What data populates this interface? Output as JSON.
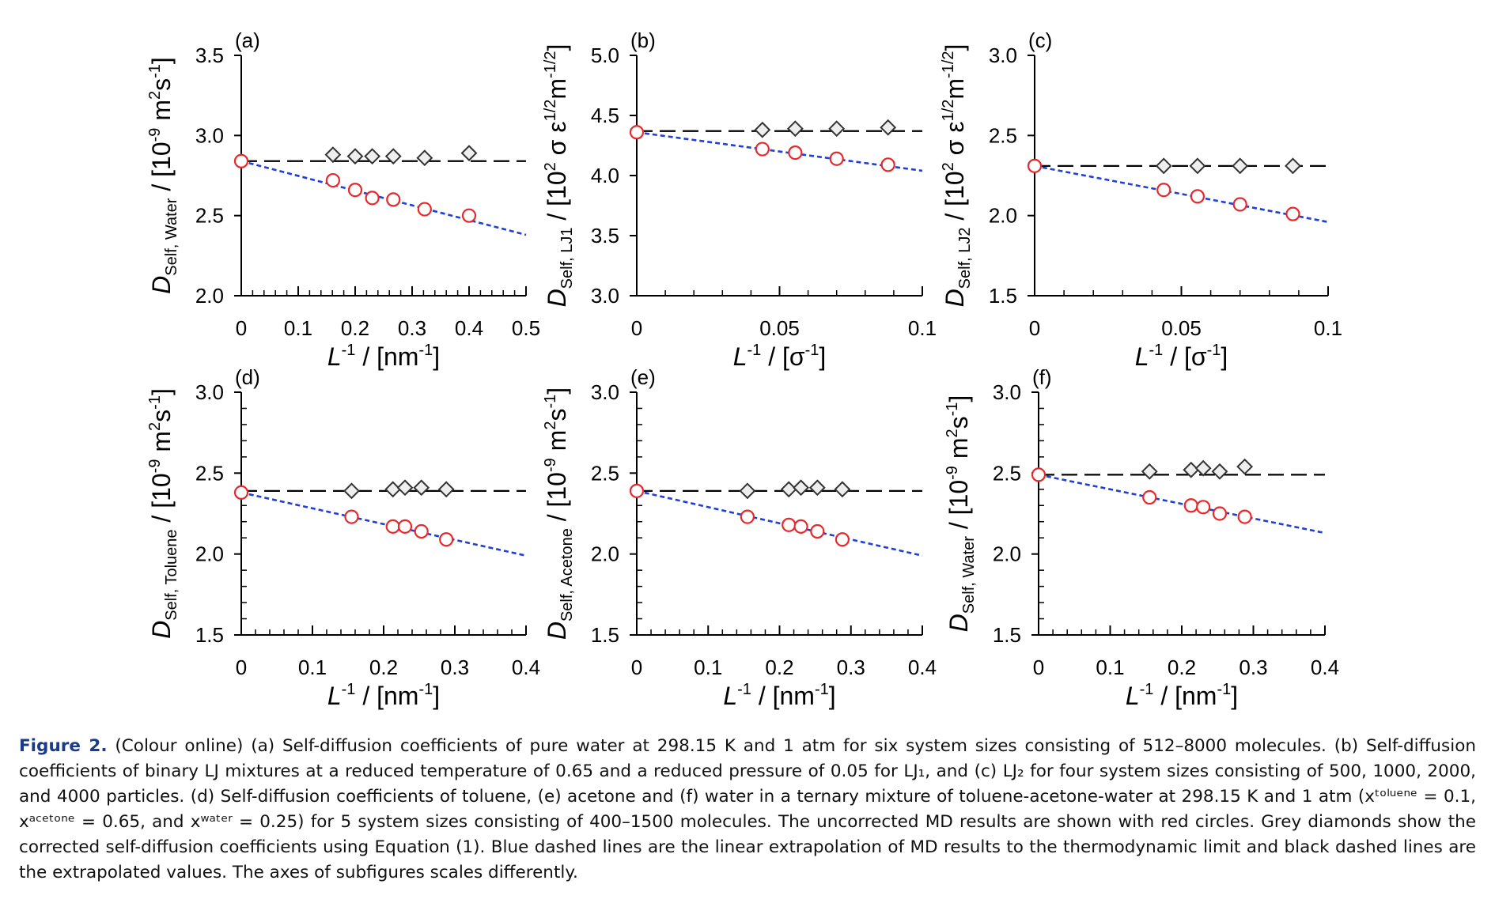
{
  "chart_data": [
    {
      "type": "scatter",
      "panel_label": "(a)",
      "xlabel_main": "L",
      "xlabel_sup": "-1",
      "xlabel_rest": " / [nm",
      "xlabel_sup2": "-1",
      "xlabel_end": "]",
      "ylabel_main": "D",
      "ylabel_sub": "Self, Water",
      "ylabel_rest": " / [10",
      "ylabel_sup": "-9",
      "ylabel_rest2": " m",
      "ylabel_sup2": "2",
      "ylabel_rest3": "s",
      "ylabel_sup3": "-1",
      "ylabel_end": "]",
      "xlim": [
        0,
        0.5
      ],
      "ylim": [
        2.0,
        3.5
      ],
      "xticks": [
        0,
        0.1,
        0.2,
        0.3,
        0.4,
        0.5
      ],
      "xtick_labels": [
        "0",
        "0.1",
        "0.2",
        "0.3",
        "0.4",
        "0.5"
      ],
      "yticks": [
        2.0,
        2.5,
        3.0,
        3.5
      ],
      "ytick_labels": [
        "2.0",
        "2.5",
        "3.0",
        "3.5"
      ],
      "x_minor": 0.02,
      "y_minor": null,
      "series": [
        {
          "marker": "circle",
          "color": "#e8282b",
          "x": [
            0,
            0.161,
            0.2,
            0.23,
            0.267,
            0.322,
            0.4
          ],
          "y": [
            2.84,
            2.72,
            2.66,
            2.61,
            2.6,
            2.54,
            2.5
          ]
        },
        {
          "marker": "diamond",
          "color": "#333333",
          "x": [
            0.161,
            0.2,
            0.23,
            0.267,
            0.322,
            0.4
          ],
          "y": [
            2.88,
            2.87,
            2.87,
            2.87,
            2.86,
            2.89
          ]
        }
      ],
      "fit_line": {
        "color": "#1f3fd6",
        "x": [
          0,
          0.5
        ],
        "y": [
          2.84,
          2.38
        ]
      },
      "extrapolated_line": {
        "color": "#000000",
        "y": 2.84
      }
    },
    {
      "type": "scatter",
      "panel_label": "(b)",
      "xlabel_main": "L",
      "xlabel_sup": "-1",
      "xlabel_rest": " / [σ",
      "xlabel_sup2": "-1",
      "xlabel_end": "]",
      "ylabel_main": "D",
      "ylabel_sub": "Self, LJ1",
      "ylabel_rest": " / [10",
      "ylabel_sup": "2",
      "ylabel_rest2": " σ ε",
      "ylabel_sup2": "1/2",
      "ylabel_rest3": "m",
      "ylabel_sup3": "-1/2",
      "ylabel_end": "]",
      "xlim": [
        0,
        0.1
      ],
      "ylim": [
        3.0,
        5.0
      ],
      "xticks": [
        0,
        0.05,
        0.1
      ],
      "xtick_labels": [
        "0",
        "0.05",
        "0.1"
      ],
      "yticks": [
        3.0,
        3.5,
        4.0,
        4.5,
        5.0
      ],
      "ytick_labels": [
        "3.0",
        "3.5",
        "4.0",
        "4.5",
        "5.0"
      ],
      "x_minor": 0.01,
      "y_minor": null,
      "series": [
        {
          "marker": "circle",
          "color": "#e8282b",
          "x": [
            0,
            0.044,
            0.0555,
            0.07,
            0.088
          ],
          "y": [
            4.36,
            4.22,
            4.19,
            4.14,
            4.09
          ]
        },
        {
          "marker": "diamond",
          "color": "#333333",
          "x": [
            0.044,
            0.0555,
            0.07,
            0.088
          ],
          "y": [
            4.38,
            4.39,
            4.39,
            4.4
          ]
        }
      ],
      "fit_line": {
        "color": "#1f3fd6",
        "x": [
          0,
          0.1
        ],
        "y": [
          4.36,
          4.04
        ]
      },
      "extrapolated_line": {
        "color": "#000000",
        "y": 4.37
      }
    },
    {
      "type": "scatter",
      "panel_label": "(c)",
      "xlabel_main": "L",
      "xlabel_sup": "-1",
      "xlabel_rest": " / [σ",
      "xlabel_sup2": "-1",
      "xlabel_end": "]",
      "ylabel_main": "D",
      "ylabel_sub": "Self, LJ2",
      "ylabel_rest": " / [10",
      "ylabel_sup": "2",
      "ylabel_rest2": " σ ε",
      "ylabel_sup2": "1/2",
      "ylabel_rest3": "m",
      "ylabel_sup3": "-1/2",
      "ylabel_end": "]",
      "xlim": [
        0,
        0.1
      ],
      "ylim": [
        1.5,
        3.0
      ],
      "xticks": [
        0,
        0.05,
        0.1
      ],
      "xtick_labels": [
        "0",
        "0.05",
        "0.1"
      ],
      "yticks": [
        1.5,
        2.0,
        2.5,
        3.0
      ],
      "ytick_labels": [
        "1.5",
        "2.0",
        "2.5",
        "3.0"
      ],
      "x_minor": 0.01,
      "y_minor": null,
      "series": [
        {
          "marker": "circle",
          "color": "#e8282b",
          "x": [
            0,
            0.044,
            0.0555,
            0.07,
            0.088
          ],
          "y": [
            2.31,
            2.16,
            2.12,
            2.07,
            2.01
          ]
        },
        {
          "marker": "diamond",
          "color": "#333333",
          "x": [
            0.044,
            0.0555,
            0.07,
            0.088
          ],
          "y": [
            2.31,
            2.31,
            2.31,
            2.31
          ]
        }
      ],
      "fit_line": {
        "color": "#1f3fd6",
        "x": [
          0,
          0.1
        ],
        "y": [
          2.31,
          1.96
        ]
      },
      "extrapolated_line": {
        "color": "#000000",
        "y": 2.31
      }
    },
    {
      "type": "scatter",
      "panel_label": "(d)",
      "xlabel_main": "L",
      "xlabel_sup": "-1",
      "xlabel_rest": " / [nm",
      "xlabel_sup2": "-1",
      "xlabel_end": "]",
      "ylabel_main": "D",
      "ylabel_sub": "Self, Toluene",
      "ylabel_rest": " / [10",
      "ylabel_sup": "-9",
      "ylabel_rest2": " m",
      "ylabel_sup2": "2",
      "ylabel_rest3": "s",
      "ylabel_sup3": "-1",
      "ylabel_end": "]",
      "xlim": [
        0,
        0.4
      ],
      "ylim": [
        1.5,
        3.0
      ],
      "xticks": [
        0,
        0.1,
        0.2,
        0.3,
        0.4
      ],
      "xtick_labels": [
        "0",
        "0.1",
        "0.2",
        "0.3",
        "0.4"
      ],
      "yticks": [
        1.5,
        2.0,
        2.5,
        3.0
      ],
      "ytick_labels": [
        "1.5",
        "2.0",
        "2.5",
        "3.0"
      ],
      "x_minor": 0.02,
      "y_minor": 0.1,
      "series": [
        {
          "marker": "circle",
          "color": "#e8282b",
          "x": [
            0,
            0.155,
            0.213,
            0.23,
            0.253,
            0.288
          ],
          "y": [
            2.38,
            2.23,
            2.17,
            2.17,
            2.14,
            2.09
          ]
        },
        {
          "marker": "diamond",
          "color": "#333333",
          "x": [
            0.155,
            0.213,
            0.23,
            0.253,
            0.288
          ],
          "y": [
            2.39,
            2.4,
            2.41,
            2.41,
            2.4
          ]
        }
      ],
      "fit_line": {
        "color": "#1f3fd6",
        "x": [
          0,
          0.4
        ],
        "y": [
          2.38,
          1.99
        ]
      },
      "extrapolated_line": {
        "color": "#000000",
        "y": 2.39
      }
    },
    {
      "type": "scatter",
      "panel_label": "(e)",
      "xlabel_main": "L",
      "xlabel_sup": "-1",
      "xlabel_rest": " / [nm",
      "xlabel_sup2": "-1",
      "xlabel_end": "]",
      "ylabel_main": "D",
      "ylabel_sub": "Self, Acetone",
      "ylabel_rest": " / [10",
      "ylabel_sup": "-9",
      "ylabel_rest2": " m",
      "ylabel_sup2": "2",
      "ylabel_rest3": "s",
      "ylabel_sup3": "-1",
      "ylabel_end": "]",
      "xlim": [
        0,
        0.4
      ],
      "ylim": [
        1.5,
        3.0
      ],
      "xticks": [
        0,
        0.1,
        0.2,
        0.3,
        0.4
      ],
      "xtick_labels": [
        "0",
        "0.1",
        "0.2",
        "0.3",
        "0.4"
      ],
      "yticks": [
        1.5,
        2.0,
        2.5,
        3.0
      ],
      "ytick_labels": [
        "1.5",
        "2.0",
        "2.5",
        "3.0"
      ],
      "x_minor": 0.02,
      "y_minor": 0.1,
      "series": [
        {
          "marker": "circle",
          "color": "#e8282b",
          "x": [
            0,
            0.155,
            0.213,
            0.23,
            0.253,
            0.288
          ],
          "y": [
            2.39,
            2.23,
            2.18,
            2.17,
            2.14,
            2.09
          ]
        },
        {
          "marker": "diamond",
          "color": "#333333",
          "x": [
            0.155,
            0.213,
            0.23,
            0.253,
            0.288
          ],
          "y": [
            2.39,
            2.4,
            2.41,
            2.41,
            2.4
          ]
        }
      ],
      "fit_line": {
        "color": "#1f3fd6",
        "x": [
          0,
          0.4
        ],
        "y": [
          2.39,
          1.99
        ]
      },
      "extrapolated_line": {
        "color": "#000000",
        "y": 2.39
      }
    },
    {
      "type": "scatter",
      "panel_label": "(f)",
      "xlabel_main": "L",
      "xlabel_sup": "-1",
      "xlabel_rest": " / [nm",
      "xlabel_sup2": "-1",
      "xlabel_end": "]",
      "ylabel_main": "D",
      "ylabel_sub": "Self, Water",
      "ylabel_rest": " / [10",
      "ylabel_sup": "-9",
      "ylabel_rest2": " m",
      "ylabel_sup2": "2",
      "ylabel_rest3": "s",
      "ylabel_sup3": "-1",
      "ylabel_end": "]",
      "xlim": [
        0,
        0.4
      ],
      "ylim": [
        1.5,
        3.0
      ],
      "xticks": [
        0,
        0.1,
        0.2,
        0.3,
        0.4
      ],
      "xtick_labels": [
        "0",
        "0.1",
        "0.2",
        "0.3",
        "0.4"
      ],
      "yticks": [
        1.5,
        2.0,
        2.5,
        3.0
      ],
      "ytick_labels": [
        "1.5",
        "2.0",
        "2.5",
        "3.0"
      ],
      "x_minor": 0.02,
      "y_minor": 0.1,
      "series": [
        {
          "marker": "circle",
          "color": "#e8282b",
          "x": [
            0,
            0.155,
            0.213,
            0.23,
            0.253,
            0.288
          ],
          "y": [
            2.49,
            2.35,
            2.3,
            2.29,
            2.25,
            2.23
          ]
        },
        {
          "marker": "diamond",
          "color": "#333333",
          "x": [
            0.155,
            0.213,
            0.23,
            0.253,
            0.288
          ],
          "y": [
            2.51,
            2.52,
            2.53,
            2.51,
            2.54
          ]
        }
      ],
      "fit_line": {
        "color": "#1f3fd6",
        "x": [
          0,
          0.4
        ],
        "y": [
          2.49,
          2.13
        ]
      },
      "extrapolated_line": {
        "color": "#000000",
        "y": 2.49
      }
    }
  ],
  "caption": {
    "label": "Figure 2.",
    "text": " (Colour online) (a) Self-diffusion coefficients of pure water at 298.15 K and 1 atm for six system sizes consisting of 512–8000 molecules. (b) Self-diffusion coefficients of binary LJ mixtures at a reduced temperature of 0.65 and a reduced pressure of 0.05 for LJ₁, and (c) LJ₂ for four system sizes consisting of 500, 1000, 2000, and 4000 particles. (d) Self-diffusion coefficients of toluene, (e) acetone and (f) water in a ternary mixture of toluene-acetone-water at 298.15 K and 1 atm (xᵗᵒˡᵘᵉⁿᵉ = 0.1, xᵃᶜᵉᵗᵒⁿᵉ = 0.65, and xʷᵃᵗᵉʳ = 0.25) for 5 system sizes consisting of 400–1500 molecules. The uncorrected MD results are shown with red circles. Grey diamonds show the corrected self-diffusion coefficients using Equation (1). Blue dashed lines are the linear extrapolation of MD results to the thermodynamic limit and black dashed lines are the extrapolated values. The axes of subfigures scales differently."
  }
}
